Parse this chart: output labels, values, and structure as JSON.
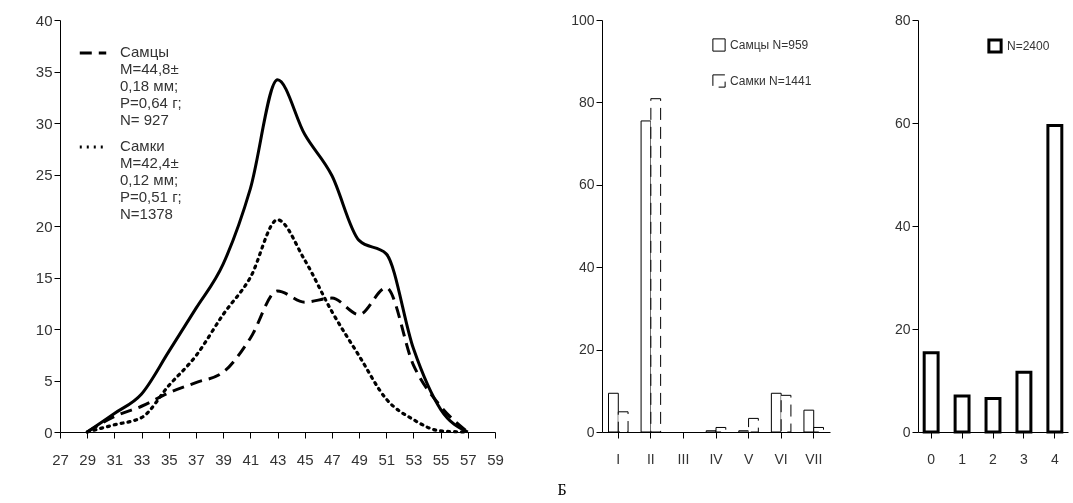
{
  "chart_data": [
    {
      "type": "line",
      "categories": [
        "27",
        "29",
        "31",
        "33",
        "35",
        "37",
        "39",
        "41",
        "43",
        "45",
        "47",
        "49",
        "51",
        "53",
        "55",
        "57",
        "59"
      ],
      "series": [
        {
          "color": "#000000",
          "line_style": "solid",
          "values": [
            null,
            0,
            1.8,
            3.7,
            7.8,
            12,
            16.3,
            23.6,
            34.2,
            28.9,
            24.9,
            18.6,
            17.3,
            8.1,
            2.2,
            0,
            null
          ]
        },
        {
          "name": "Самцы\nM=44,8±\n0,18 мм;\nP=0,64 г;\nN= 927",
          "color": "#000000",
          "line_style": "dashed",
          "values": [
            null,
            0,
            1.5,
            2.5,
            3.8,
            4.8,
            5.8,
            9.1,
            13.7,
            12.6,
            13,
            11.4,
            14,
            6.5,
            2.5,
            0,
            null
          ]
        },
        {
          "name": "Самки\nM=42,4±\n0,12 мм;\nP=0,51 г;\nN=1378",
          "color": "#000000",
          "line_style": "dotted",
          "values": [
            null,
            0,
            0.7,
            1.4,
            4.5,
            7.4,
            11.4,
            15,
            20.6,
            16.7,
            11.7,
            7.4,
            3.2,
            1.2,
            0.1,
            0,
            null
          ]
        }
      ],
      "ylim": [
        0,
        40
      ],
      "yticks": [
        0,
        5,
        10,
        15,
        20,
        25,
        30,
        35,
        40
      ],
      "legend": "top left"
    },
    {
      "type": "bar",
      "categories": [
        "I",
        "II",
        "III",
        "IV",
        "V",
        "VI",
        "VII"
      ],
      "series": [
        {
          "name": "Самцы  N=959",
          "color": "#ffffff",
          "line_style": "solid",
          "values": [
            9.4,
            75.5,
            null,
            0.3,
            0.3,
            9.4,
            5.3
          ]
        },
        {
          "name": "Самки N=1441",
          "color": "#ffffff",
          "line_style": "dashed",
          "values": [
            4.9,
            80.9,
            null,
            1.1,
            3.3,
            8.9,
            1.1
          ]
        }
      ],
      "ylim": [
        0,
        100
      ],
      "yticks": [
        0,
        20,
        40,
        60,
        80,
        100
      ],
      "legend": "top right",
      "annotations": [
        "Б"
      ]
    },
    {
      "type": "bar",
      "categories": [
        "0",
        "1",
        "2",
        "3",
        "4"
      ],
      "series": [
        {
          "name": "N=2400",
          "color": "#ffffff",
          "line_style": "solid",
          "values": [
            15.4,
            7,
            6.5,
            11.6,
            59.5
          ]
        }
      ],
      "ylim": [
        0,
        80
      ],
      "yticks": [
        0,
        20,
        40,
        60,
        80
      ],
      "legend": "top right"
    }
  ]
}
